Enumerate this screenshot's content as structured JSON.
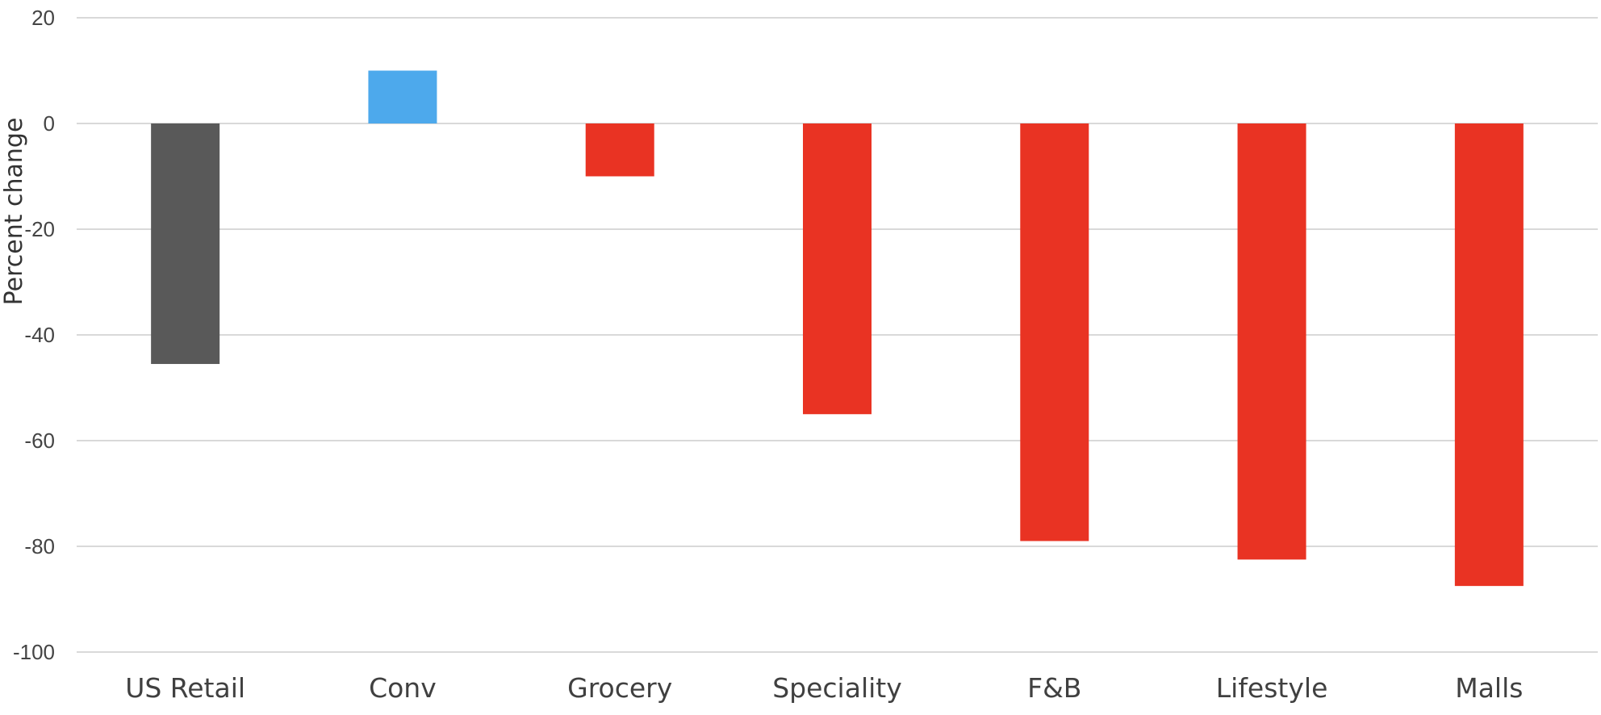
{
  "chart_data": {
    "type": "bar",
    "categories": [
      "US Retail",
      "Conv",
      "Grocery",
      "Speciality",
      "F&B",
      "Lifestyle",
      "Malls"
    ],
    "values": [
      -45.5,
      10,
      -10,
      -55,
      -79,
      -82.5,
      -87.5
    ],
    "bar_colors": [
      "#595959",
      "#4da9ec",
      "#e93323",
      "#e93323",
      "#e93323",
      "#e93323",
      "#e93323"
    ],
    "title": "",
    "xlabel": "",
    "ylabel": "Percent change",
    "ylim": [
      -100,
      20
    ],
    "yticks": [
      20,
      0,
      -20,
      -40,
      -60,
      -80,
      -100
    ],
    "grid": true,
    "legend": "none"
  }
}
